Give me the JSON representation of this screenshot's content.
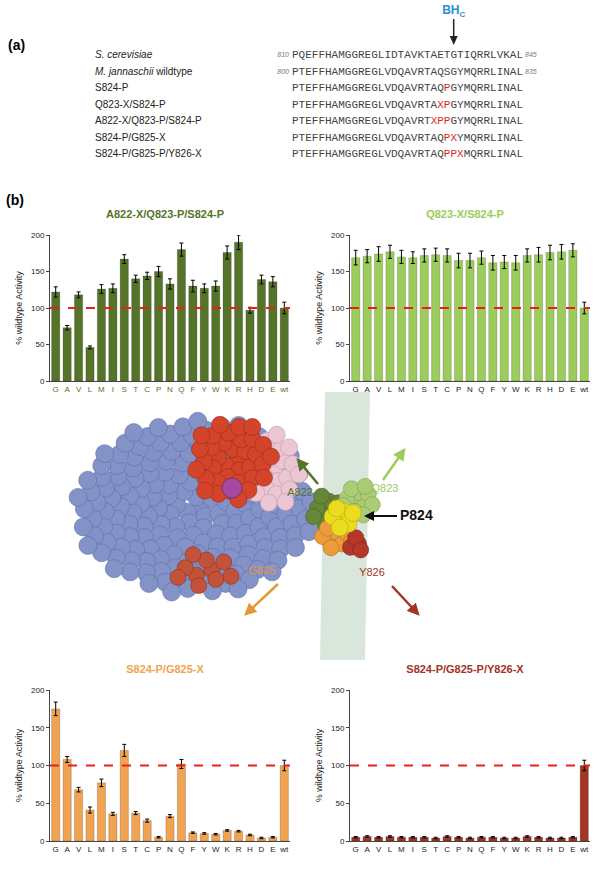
{
  "panel_a": {
    "label": "(a)",
    "marker": {
      "main": "BH",
      "sub": "C"
    },
    "rows": [
      {
        "name": [
          {
            "text": "S. cerevisiae",
            "italic": true
          }
        ],
        "start": 810,
        "end": 845,
        "parts": [
          {
            "text": "PQEFFHAMGGREGLIDTAVKTAETGTIQRRLVKAL"
          }
        ]
      },
      {
        "name": [
          {
            "text": "M. jannaschii",
            "italic": true
          },
          {
            "text": " wildtype"
          }
        ],
        "start": 800,
        "end": 835,
        "parts": [
          {
            "text": "PTEFFHAMGGREGLVDQAVRTAQSGYMQRRLINAL"
          }
        ]
      },
      {
        "name": [
          {
            "text": "S824-P"
          }
        ],
        "parts": [
          {
            "text": "PTEFFHAMGGREGLVDQAVRTAQ"
          },
          {
            "text": "P",
            "mutation": true
          },
          {
            "text": "GYMQRRLINAL"
          }
        ]
      },
      {
        "name": [
          {
            "text": "Q823-X/S824-P"
          }
        ],
        "parts": [
          {
            "text": "PTEFFHAMGGREGLVDQAVRTA"
          },
          {
            "text": "XP",
            "mutation": true
          },
          {
            "text": "GYMQRRLINAL"
          }
        ]
      },
      {
        "name": [
          {
            "text": "A822-X/Q823-P/S824-P"
          }
        ],
        "parts": [
          {
            "text": "PTEFFHAMGGREGLVDQAVRT"
          },
          {
            "text": "XPP",
            "mutation": true
          },
          {
            "text": "GYMQRRLINAL"
          }
        ]
      },
      {
        "name": [
          {
            "text": "S824-P/G825-X"
          }
        ],
        "parts": [
          {
            "text": "PTEFFHAMGGREGLVDQAVRTAQ"
          },
          {
            "text": "PX",
            "mutation": true
          },
          {
            "text": "YMQRRLINAL"
          }
        ]
      },
      {
        "name": [
          {
            "text": "S824-P/G825-P/Y826-X"
          }
        ],
        "parts": [
          {
            "text": "PTEFFHAMGGREGLVDQAVRTAQ"
          },
          {
            "text": "PPX",
            "mutation": true
          },
          {
            "text": "MQRRLINAL"
          }
        ]
      }
    ]
  },
  "panel_b": {
    "label": "(b)"
  },
  "structure": {
    "labels": [
      "A822",
      "Q823",
      "P824",
      "G825",
      "Y826"
    ]
  },
  "chart_data": [
    {
      "type": "bar",
      "title": "A822-X/Q823-P/S824-P",
      "color": "#55742a",
      "categories": [
        "G",
        "A",
        "V",
        "L",
        "M",
        "I",
        "S",
        "T",
        "C",
        "P",
        "N",
        "Q",
        "F",
        "Y",
        "W",
        "K",
        "R",
        "H",
        "D",
        "E",
        "wt"
      ],
      "values": [
        122,
        73,
        118,
        46,
        126,
        127,
        167,
        140,
        144,
        150,
        133,
        180,
        130,
        127,
        130,
        176,
        190,
        97,
        139,
        136,
        100
      ],
      "errors": [
        7,
        3,
        4,
        2,
        6,
        6,
        6,
        5,
        5,
        7,
        7,
        9,
        8,
        6,
        7,
        9,
        10,
        4,
        6,
        7,
        8
      ],
      "ylabel": "% wildtype Activity",
      "ylim": [
        0,
        200
      ],
      "yticks": [
        0,
        50,
        100,
        150,
        200
      ],
      "grid": false,
      "reference_line": 100
    },
    {
      "type": "bar",
      "title": "Q823-X/S824-P",
      "color": "#9ccc5c",
      "categories": [
        "G",
        "A",
        "V",
        "L",
        "M",
        "I",
        "S",
        "T",
        "C",
        "P",
        "N",
        "Q",
        "F",
        "Y",
        "W",
        "K",
        "R",
        "H",
        "D",
        "E",
        "wt"
      ],
      "values": [
        169,
        171,
        174,
        177,
        170,
        169,
        172,
        173,
        172,
        165,
        165,
        169,
        162,
        163,
        162,
        172,
        173,
        176,
        177,
        179,
        100
      ],
      "errors": [
        10,
        9,
        10,
        9,
        9,
        8,
        9,
        9,
        9,
        10,
        10,
        9,
        10,
        9,
        10,
        9,
        10,
        10,
        10,
        9,
        8
      ],
      "ylabel": "% wildtype Activity",
      "ylim": [
        0,
        200
      ],
      "yticks": [
        0,
        50,
        100,
        150,
        200
      ],
      "grid": false,
      "reference_line": 100
    },
    {
      "type": "bar",
      "title": "S824-P/G825-X",
      "color": "#f0a352",
      "categories": [
        "G",
        "A",
        "V",
        "L",
        "M",
        "I",
        "S",
        "T",
        "C",
        "P",
        "N",
        "Q",
        "F",
        "Y",
        "W",
        "K",
        "R",
        "H",
        "D",
        "E",
        "wt"
      ],
      "values": [
        175,
        108,
        68,
        41,
        77,
        36,
        120,
        37,
        27,
        5,
        33,
        102,
        11,
        10,
        9,
        14,
        13,
        8,
        4,
        5,
        100
      ],
      "errors": [
        9,
        4,
        3,
        4,
        5,
        2,
        8,
        2,
        2,
        1,
        2,
        6,
        1,
        1,
        1,
        1,
        1,
        1,
        1,
        1,
        7
      ],
      "ylabel": "% wildtype Activity",
      "ylim": [
        0,
        200
      ],
      "yticks": [
        0,
        50,
        100,
        150,
        200
      ],
      "grid": false,
      "reference_line": 100
    },
    {
      "type": "bar",
      "title": "S824-P/G825-P/Y826-X",
      "color": "#a23524",
      "categories": [
        "G",
        "A",
        "V",
        "L",
        "M",
        "I",
        "S",
        "T",
        "C",
        "P",
        "N",
        "Q",
        "F",
        "Y",
        "W",
        "K",
        "R",
        "H",
        "D",
        "E",
        "wt"
      ],
      "values": [
        5,
        6,
        5,
        6,
        5,
        5,
        5,
        4,
        6,
        5,
        4,
        5,
        5,
        4,
        4,
        6,
        5,
        4,
        4,
        5,
        100
      ],
      "errors": [
        1,
        1,
        1,
        1,
        1,
        1,
        1,
        1,
        1,
        1,
        1,
        1,
        1,
        1,
        1,
        1,
        1,
        1,
        1,
        1,
        7
      ],
      "ylabel": "% wildtype Activity",
      "ylim": [
        0,
        200
      ],
      "yticks": [
        0,
        50,
        100,
        150,
        200
      ],
      "grid": false,
      "reference_line": 100
    }
  ]
}
